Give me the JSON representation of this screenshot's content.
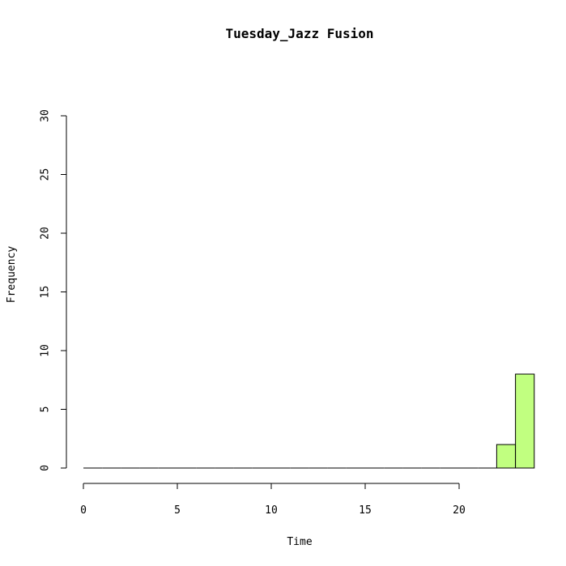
{
  "chart_data": {
    "type": "bar",
    "title": "Tuesday_Jazz Fusion",
    "xlabel": "Time",
    "ylabel": "Frequency",
    "bar_color": "#c1ff80",
    "xlim": [
      0,
      24
    ],
    "ylim": [
      0,
      30
    ],
    "x_ticks": [
      "0",
      "5",
      "10",
      "15",
      "20"
    ],
    "y_ticks": [
      "0",
      "5",
      "10",
      "15",
      "20",
      "25",
      "30"
    ],
    "bins": [
      {
        "start": 0,
        "end": 1,
        "count": 0
      },
      {
        "start": 1,
        "end": 2,
        "count": 0
      },
      {
        "start": 2,
        "end": 3,
        "count": 0
      },
      {
        "start": 3,
        "end": 4,
        "count": 0
      },
      {
        "start": 4,
        "end": 5,
        "count": 0
      },
      {
        "start": 5,
        "end": 6,
        "count": 0
      },
      {
        "start": 6,
        "end": 7,
        "count": 0
      },
      {
        "start": 7,
        "end": 8,
        "count": 0
      },
      {
        "start": 8,
        "end": 9,
        "count": 0
      },
      {
        "start": 9,
        "end": 10,
        "count": 0
      },
      {
        "start": 10,
        "end": 11,
        "count": 0
      },
      {
        "start": 11,
        "end": 12,
        "count": 0
      },
      {
        "start": 12,
        "end": 13,
        "count": 0
      },
      {
        "start": 13,
        "end": 14,
        "count": 0
      },
      {
        "start": 14,
        "end": 15,
        "count": 0
      },
      {
        "start": 15,
        "end": 16,
        "count": 0
      },
      {
        "start": 16,
        "end": 17,
        "count": 0
      },
      {
        "start": 17,
        "end": 18,
        "count": 0
      },
      {
        "start": 18,
        "end": 19,
        "count": 0
      },
      {
        "start": 19,
        "end": 20,
        "count": 0
      },
      {
        "start": 20,
        "end": 21,
        "count": 0
      },
      {
        "start": 21,
        "end": 22,
        "count": 0
      },
      {
        "start": 22,
        "end": 23,
        "count": 2
      },
      {
        "start": 23,
        "end": 24,
        "count": 8
      }
    ]
  }
}
